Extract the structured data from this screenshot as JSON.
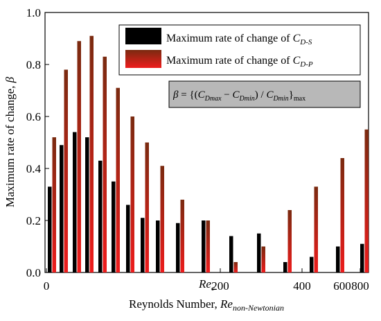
{
  "chart_data": {
    "type": "bar",
    "xlabel": "Reynolds Number, ",
    "xlabel_italic": "Re",
    "xlabel_sub": "non-Newtonian",
    "ylabel": "Maximum rate of change, ",
    "ylabel_italic": "β",
    "ylim": [
      0,
      1.0
    ],
    "y_ticks": [
      "0.0",
      "0.2",
      "0.4",
      "0.6",
      "0.8",
      "1.0"
    ],
    "y_tick_values": [
      0,
      0.2,
      0.4,
      0.6,
      0.8,
      1.0
    ],
    "x_scale": "custom-nonlinear",
    "x_ticks": [
      {
        "label": "0",
        "value": 0
      },
      {
        "label": "200",
        "value": 200
      },
      {
        "label": "400",
        "value": 400
      },
      {
        "label": "600",
        "value": 600
      },
      {
        "label": "800",
        "value": 800
      }
    ],
    "x_annotation": {
      "label": "Re",
      "sub": "c",
      "color": "#8b2500"
    },
    "legend_position": "top-right",
    "formula": {
      "lhs": "β",
      "eq": " = {(",
      "c1": "C",
      "c1_sub": "Dmax",
      "minus": " − ",
      "c2": "C",
      "c2_sub": "Dmin",
      "div": ") / ",
      "c3": "C",
      "c3_sub": "Dmin",
      "close": "}",
      "close_sub": "max"
    },
    "series": [
      {
        "name": "Maximum rate of change of ",
        "name_italic": "C",
        "name_sub": "D-S",
        "color": "#000000",
        "values": [
          0.33,
          0.49,
          0.54,
          0.52,
          0.43,
          0.35,
          0.26,
          0.21,
          0.2,
          0.19,
          0.2,
          0.14,
          0.15,
          0.04,
          0.06,
          0.1,
          0.11
        ]
      },
      {
        "name": "Maximum rate of change of ",
        "name_italic": "C",
        "name_sub": "D-P",
        "color": "#ee1c1c",
        "values": [
          0.52,
          0.78,
          0.89,
          0.91,
          0.83,
          0.71,
          0.6,
          0.5,
          0.41,
          0.28,
          0.2,
          0.04,
          0.1,
          0.24,
          0.33,
          0.44,
          0.55
        ]
      }
    ]
  }
}
